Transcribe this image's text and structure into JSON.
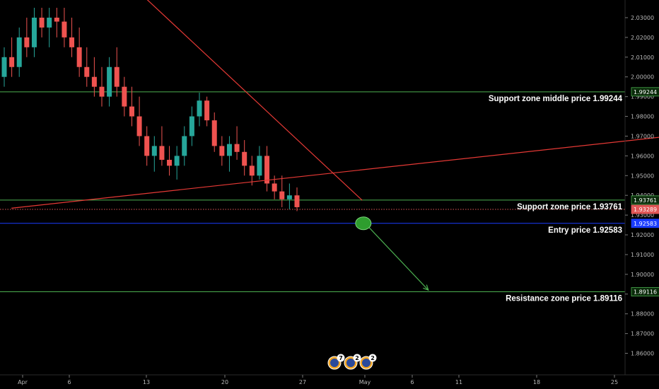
{
  "chart_data": {
    "type": "candlestick",
    "y_range": [
      1.855,
      2.035
    ],
    "y_ticks": [
      "1.86000",
      "1.87000",
      "1.88000",
      "1.89000",
      "1.90000",
      "1.91000",
      "1.92000",
      "1.93000",
      "1.94000",
      "1.95000",
      "1.96000",
      "1.97000",
      "1.98000",
      "1.99000",
      "2.00000",
      "2.01000",
      "2.02000",
      "2.03000"
    ],
    "x_ticks": [
      "Apr",
      "6",
      "13",
      "20",
      "27",
      "May",
      "6",
      "11",
      "18",
      "25"
    ],
    "levels": [
      {
        "name": "support-middle",
        "value": 1.99244,
        "label": "Support zone middle price 1.99244",
        "tag": "1.99244",
        "color": "#4caf50",
        "tag_bg": "#0a2a0a",
        "tag_fg": "#ffffff"
      },
      {
        "name": "support",
        "value": 1.93761,
        "label": "Support zone price 1.93761",
        "tag": "1.93761",
        "color": "#4caf50",
        "tag_bg": "#0a2a0a",
        "tag_fg": "#ffffff"
      },
      {
        "name": "current",
        "value": 1.93289,
        "label": "",
        "tag": "1.93289",
        "color": "#e05656",
        "tag_bg": "#e05656",
        "tag_fg": "#ffffff"
      },
      {
        "name": "entry",
        "value": 1.92583,
        "label": "Entry price 1.92583",
        "tag": "1.92583",
        "color": "#1a3cff",
        "tag_bg": "#1a3cff",
        "tag_fg": "#ffffff"
      },
      {
        "name": "resistance",
        "value": 1.89116,
        "label": "Resistance zone price 1.89116",
        "tag": "1.89116",
        "color": "#4caf50",
        "tag_bg": "#0a2a0a",
        "tag_fg": "#ffffff"
      }
    ],
    "trendlines": [
      {
        "name": "descending-trendline",
        "from": {
          "day": 10,
          "price": 2.045
        },
        "to": {
          "day": 30.3,
          "price": 1.9375
        },
        "color": "#e53935"
      },
      {
        "name": "ascending-trendline",
        "from": {
          "day": -1,
          "price": 1.9335
        },
        "to": {
          "day": 60,
          "price": 1.9714
        },
        "color": "#e53935"
      }
    ],
    "projection": {
      "from": {
        "day": 30.7,
        "price": 1.925
      },
      "to": {
        "day": 36.2,
        "price": 1.892
      },
      "color": "#4caf50"
    },
    "entry_marker": {
      "day": 30.4,
      "price": 1.92583,
      "color": "#2e9d2e"
    },
    "event_badges": [
      "7",
      "2",
      "2"
    ],
    "candles": [
      [
        2.0,
        2.015,
        1.995,
        2.01
      ],
      [
        2.01,
        2.02,
        2.0,
        2.005
      ],
      [
        2.005,
        2.025,
        2.0,
        2.02
      ],
      [
        2.02,
        2.03,
        2.01,
        2.015
      ],
      [
        2.015,
        2.035,
        2.01,
        2.03
      ],
      [
        2.03,
        2.035,
        2.02,
        2.025
      ],
      [
        2.025,
        2.035,
        2.015,
        2.03
      ],
      [
        2.03,
        2.035,
        2.02,
        2.028
      ],
      [
        2.028,
        2.035,
        2.015,
        2.02
      ],
      [
        2.02,
        2.03,
        2.01,
        2.015
      ],
      [
        2.015,
        2.025,
        2.0,
        2.005
      ],
      [
        2.005,
        2.015,
        1.995,
        2.0
      ],
      [
        2.0,
        2.01,
        1.99,
        1.995
      ],
      [
        1.995,
        2.005,
        1.985,
        1.99
      ],
      [
        1.99,
        2.01,
        1.985,
        2.005
      ],
      [
        2.005,
        2.015,
        1.99,
        1.995
      ],
      [
        1.995,
        2.0,
        1.98,
        1.985
      ],
      [
        1.985,
        1.995,
        1.975,
        1.98
      ],
      [
        1.98,
        1.99,
        1.965,
        1.97
      ],
      [
        1.97,
        1.975,
        1.955,
        1.96
      ],
      [
        1.96,
        1.97,
        1.952,
        1.965
      ],
      [
        1.965,
        1.975,
        1.955,
        1.958
      ],
      [
        1.958,
        1.965,
        1.95,
        1.955
      ],
      [
        1.955,
        1.965,
        1.948,
        1.96
      ],
      [
        1.96,
        1.975,
        1.955,
        1.97
      ],
      [
        1.97,
        1.985,
        1.965,
        1.98
      ],
      [
        1.98,
        1.992,
        1.975,
        1.988
      ],
      [
        1.988,
        1.99,
        1.975,
        1.978
      ],
      [
        1.978,
        1.982,
        1.962,
        1.965
      ],
      [
        1.965,
        1.97,
        1.955,
        1.96
      ],
      [
        1.96,
        1.97,
        1.952,
        1.966
      ],
      [
        1.966,
        1.975,
        1.958,
        1.962
      ],
      [
        1.962,
        1.968,
        1.95,
        1.955
      ],
      [
        1.955,
        1.96,
        1.945,
        1.95
      ],
      [
        1.95,
        1.965,
        1.948,
        1.96
      ],
      [
        1.96,
        1.965,
        1.942,
        1.946
      ],
      [
        1.946,
        1.95,
        1.938,
        1.942
      ],
      [
        1.942,
        1.95,
        1.934,
        1.938
      ],
      [
        1.938,
        1.946,
        1.933,
        1.94
      ],
      [
        1.94,
        1.944,
        1.932,
        1.934
      ]
    ]
  }
}
